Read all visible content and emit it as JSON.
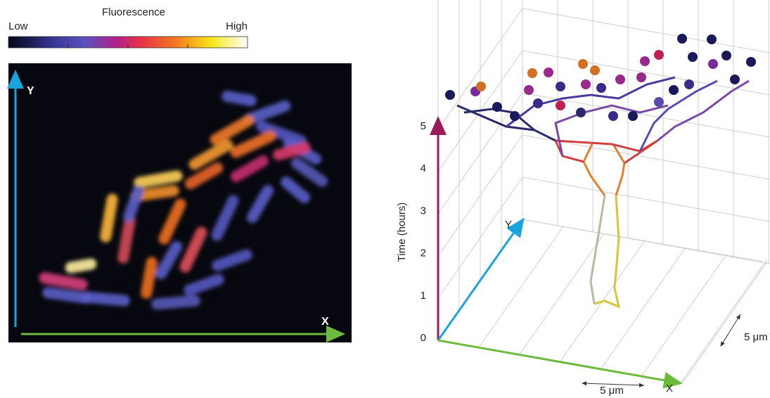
{
  "colorbar": {
    "title": "Fluorescence",
    "low": "Low",
    "high": "High"
  },
  "image": {
    "y_axis": "Y",
    "x_axis": "X"
  },
  "plot3d": {
    "time_axis": "Time (hours)",
    "time_ticks": [
      0,
      1,
      2,
      3,
      4,
      5
    ],
    "y_axis": "Y",
    "x_axis": "X",
    "scale_x": "5 μm",
    "scale_y": "5 μm"
  }
}
